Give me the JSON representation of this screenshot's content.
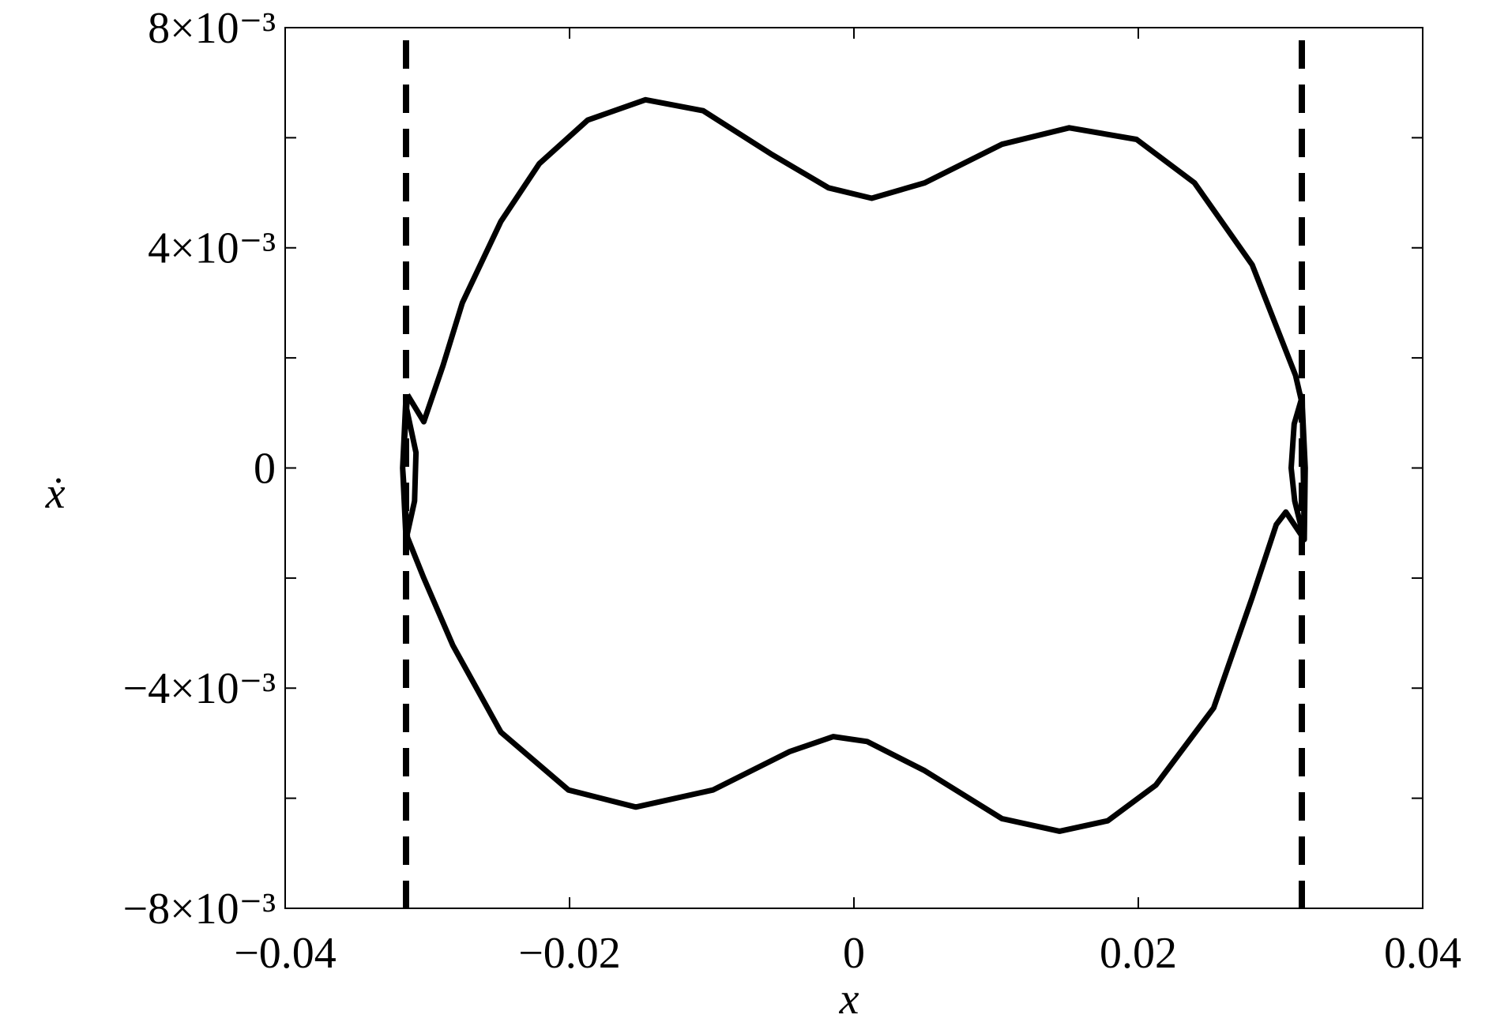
{
  "chart_data": {
    "type": "line",
    "xlabel": "x",
    "ylabel": "ẋ",
    "xlim": [
      -0.04,
      0.04
    ],
    "xticks": [
      {
        "value": -0.04,
        "label": "−0.04"
      },
      {
        "value": -0.02,
        "label": "−0.02"
      },
      0,
      0.02,
      0.04
    ],
    "ylim": [
      -0.008,
      0.008
    ],
    "yticks": [
      {
        "value": -0.008,
        "label": "−8×10⁻³"
      },
      {
        "value": -0.004,
        "label": "−4×10⁻³"
      },
      0,
      {
        "value": 0.004,
        "label": "4×10⁻³"
      },
      {
        "value": 0.008,
        "label": "8×10⁻³"
      }
    ],
    "yminorticks": [
      -0.006,
      -0.002,
      0.002,
      0.006
    ],
    "grid": false,
    "vlines": [
      -0.0315,
      0.0315
    ],
    "vline_color": "#000000",
    "x": [
      -0.0314,
      -0.03025,
      -0.0289,
      -0.02754,
      -0.02483,
      -0.02212,
      -0.01873,
      -0.01466,
      -0.0106,
      -0.00586,
      -0.00179,
      0.00125,
      0.00498,
      0.0104,
      0.01514,
      0.01988,
      0.02395,
      0.02801,
      0.03106,
      0.03153,
      0.03174,
      0.03167,
      0.031,
      0.03075,
      0.03096,
      0.03153,
      0.03167,
      0.03038,
      0.0297,
      0.02801,
      0.0253,
      0.02124,
      0.01785,
      0.01446,
      0.0104,
      0.00498,
      0.00092,
      -0.00145,
      -0.0045,
      -0.00992,
      -0.01534,
      -0.02008,
      -0.02483,
      -0.02821,
      -0.03025,
      -0.0314,
      -0.03174,
      -0.03153,
      -0.0308,
      -0.0309,
      -0.0315,
      -0.03174,
      -0.0314
    ],
    "series": [
      {
        "color": "#000000",
        "values": [
          0.00133,
          0.00084,
          0.00186,
          0.003,
          0.00448,
          0.00553,
          0.00632,
          0.00669,
          0.00649,
          0.00571,
          0.00509,
          0.0049,
          0.00518,
          0.00588,
          0.00618,
          0.00597,
          0.00518,
          0.00369,
          0.00168,
          0.00116,
          0,
          -0.0013,
          -0.0006,
          0,
          0.0008,
          0.0013,
          -0.0013,
          -0.0008,
          -0.00103,
          -0.00235,
          -0.00436,
          -0.00576,
          -0.00641,
          -0.0066,
          -0.00637,
          -0.0055,
          -0.00497,
          -0.00488,
          -0.00515,
          -0.00585,
          -0.00616,
          -0.00585,
          -0.0048,
          -0.00322,
          -0.002,
          -0.00126,
          0,
          0.00116,
          0.00028,
          -0.0006,
          -0.0013,
          0,
          0.00133
        ]
      }
    ]
  }
}
